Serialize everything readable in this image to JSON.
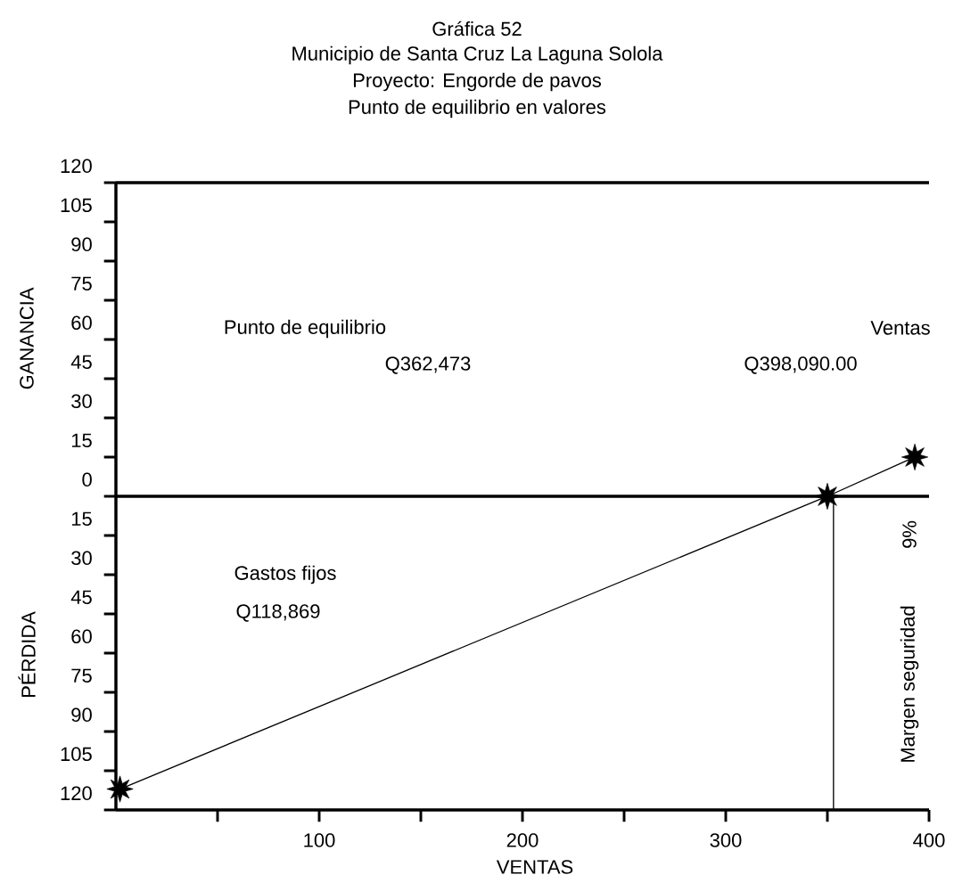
{
  "chart_data": {
    "type": "line",
    "title": "Gráfica 52",
    "subtitle": "Municipio de Santa Cruz La Laguna Solola",
    "xlabel": "VENTAS",
    "ylabel": "GANANCIA",
    "annotations": [
      "Proyecto: Engorde de pavos",
      "Punto de equilibrio en valores",
      "PÉRDIDA",
      "Punto de equilibrio",
      "Q362,473",
      "Ventas",
      "Q398,090.00",
      "Gastos fijos",
      "Q118,869",
      "Margen seguridad",
      "9%"
    ],
    "series": [
      {
        "color": "#000000",
        "marker": "star",
        "x": [
          2,
          350,
          393
        ],
        "values": [
          -112,
          0,
          15
        ]
      },
      {
        "color": "#000000",
        "marker": "none",
        "x": [
          353,
          353
        ],
        "values": [
          0,
          -120
        ]
      }
    ],
    "xlim": [
      0,
      400
    ],
    "xticks": [
      {
        "value": 50,
        "label": null
      },
      100,
      {
        "value": 150,
        "label": null
      },
      200,
      {
        "value": 250,
        "label": null
      },
      300,
      {
        "value": 350,
        "label": null
      },
      400
    ],
    "ylim": [
      -120,
      120
    ],
    "yticks": [
      {
        "value": -120,
        "label": "120"
      },
      {
        "value": -105,
        "label": "105"
      },
      {
        "value": -90,
        "label": "90"
      },
      {
        "value": -75,
        "label": "75"
      },
      {
        "value": -60,
        "label": "60"
      },
      {
        "value": -45,
        "label": "45"
      },
      {
        "value": -30,
        "label": "30"
      },
      {
        "value": -15,
        "label": "15"
      },
      0,
      15,
      30,
      45,
      60,
      75,
      90,
      105,
      120
    ],
    "ref_lines": [
      {
        "axis": "y",
        "value": 0,
        "color": "#000000"
      }
    ],
    "grid": false
  }
}
